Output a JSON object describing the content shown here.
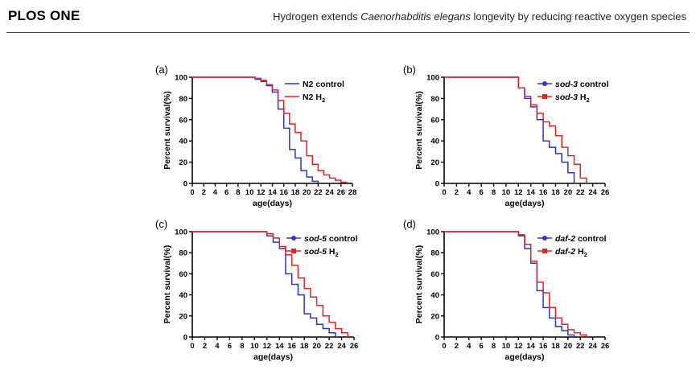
{
  "header": {
    "journal": "PLOS ONE",
    "title_pre": "Hydrogen extends ",
    "title_italic": "Caenorhabditis elegans",
    "title_post": " longevity by reducing reactive oxygen species"
  },
  "chart_data": [
    {
      "type": "line",
      "panel": "(a)",
      "xlabel": "age(days)",
      "ylabel": "Percent survival(%)",
      "xlim": [
        0,
        28
      ],
      "ylim": [
        0,
        100
      ],
      "xticks": [
        0,
        2,
        4,
        6,
        8,
        10,
        12,
        14,
        16,
        18,
        20,
        22,
        24,
        26,
        28
      ],
      "yticks": [
        0,
        20,
        40,
        60,
        80,
        100
      ],
      "legend_position": "top-right",
      "series": [
        {
          "name": "N2 control",
          "name_italic": "",
          "name_plain": "N2 control",
          "name_sub": "",
          "color": "#2b35d6",
          "points": [
            [
              0,
              100
            ],
            [
              10,
              100
            ],
            [
              11,
              98
            ],
            [
              12,
              96
            ],
            [
              13,
              92
            ],
            [
              14,
              86
            ],
            [
              15,
              70
            ],
            [
              16,
              52
            ],
            [
              17,
              32
            ],
            [
              18,
              24
            ],
            [
              19,
              12
            ],
            [
              20,
              6
            ],
            [
              21,
              2
            ],
            [
              22,
              0
            ]
          ]
        },
        {
          "name": "N2 H2",
          "name_italic": "",
          "name_plain": "N2 H",
          "name_sub": "2",
          "color": "#e02424",
          "points": [
            [
              0,
              100
            ],
            [
              10,
              100
            ],
            [
              11,
              99
            ],
            [
              12,
              97
            ],
            [
              13,
              93
            ],
            [
              14,
              88
            ],
            [
              15,
              78
            ],
            [
              16,
              66
            ],
            [
              17,
              56
            ],
            [
              18,
              48
            ],
            [
              19,
              40
            ],
            [
              20,
              26
            ],
            [
              21,
              18
            ],
            [
              22,
              12
            ],
            [
              23,
              8
            ],
            [
              24,
              5
            ],
            [
              25,
              3
            ],
            [
              26,
              1
            ],
            [
              27,
              0
            ]
          ]
        }
      ]
    },
    {
      "type": "line",
      "panel": "(b)",
      "xlabel": "age(days)",
      "ylabel": "Percent survival(%)",
      "xlim": [
        0,
        26
      ],
      "ylim": [
        0,
        100
      ],
      "xticks": [
        0,
        2,
        4,
        6,
        8,
        10,
        12,
        14,
        16,
        18,
        20,
        22,
        24,
        26
      ],
      "yticks": [
        0,
        20,
        40,
        60,
        80,
        100
      ],
      "legend_position": "top-right",
      "series": [
        {
          "name": "sod-3 control",
          "name_italic": "sod-3",
          "name_plain": " control",
          "name_sub": "",
          "color": "#2b35d6",
          "points": [
            [
              0,
              100
            ],
            [
              11,
              100
            ],
            [
              12,
              90
            ],
            [
              13,
              80
            ],
            [
              14,
              72
            ],
            [
              15,
              60
            ],
            [
              16,
              40
            ],
            [
              17,
              34
            ],
            [
              18,
              28
            ],
            [
              19,
              20
            ],
            [
              20,
              10
            ],
            [
              21,
              0
            ]
          ]
        },
        {
          "name": "sod-3 H2",
          "name_italic": "sod-3",
          "name_plain": " H",
          "name_sub": "2",
          "color": "#e02424",
          "points": [
            [
              0,
              100
            ],
            [
              11,
              100
            ],
            [
              12,
              90
            ],
            [
              13,
              82
            ],
            [
              14,
              74
            ],
            [
              15,
              66
            ],
            [
              16,
              58
            ],
            [
              17,
              54
            ],
            [
              18,
              45
            ],
            [
              19,
              34
            ],
            [
              20,
              26
            ],
            [
              21,
              18
            ],
            [
              22,
              5
            ],
            [
              23,
              0
            ]
          ]
        }
      ]
    },
    {
      "type": "line",
      "panel": "(c)",
      "xlabel": "age(days)",
      "ylabel": "Percent survival(%)",
      "xlim": [
        0,
        26
      ],
      "ylim": [
        0,
        100
      ],
      "xticks": [
        0,
        2,
        4,
        6,
        8,
        10,
        12,
        14,
        16,
        18,
        20,
        22,
        24,
        26
      ],
      "yticks": [
        0,
        20,
        40,
        60,
        80,
        100
      ],
      "legend_position": "top-right",
      "series": [
        {
          "name": "sod-5 control",
          "name_italic": "sod-5",
          "name_plain": " control",
          "name_sub": "",
          "color": "#2b35d6",
          "points": [
            [
              0,
              100
            ],
            [
              11,
              100
            ],
            [
              12,
              96
            ],
            [
              13,
              90
            ],
            [
              14,
              84
            ],
            [
              15,
              60
            ],
            [
              16,
              50
            ],
            [
              17,
              40
            ],
            [
              18,
              22
            ],
            [
              19,
              18
            ],
            [
              20,
              12
            ],
            [
              21,
              8
            ],
            [
              22,
              4
            ],
            [
              23,
              0
            ]
          ]
        },
        {
          "name": "sod-5 H2",
          "name_italic": "sod-5",
          "name_plain": " H",
          "name_sub": "2",
          "color": "#e02424",
          "points": [
            [
              0,
              100
            ],
            [
              11,
              100
            ],
            [
              12,
              98
            ],
            [
              13,
              94
            ],
            [
              14,
              86
            ],
            [
              15,
              78
            ],
            [
              16,
              68
            ],
            [
              17,
              56
            ],
            [
              18,
              46
            ],
            [
              19,
              38
            ],
            [
              20,
              30
            ],
            [
              21,
              20
            ],
            [
              22,
              14
            ],
            [
              23,
              8
            ],
            [
              24,
              4
            ],
            [
              25,
              0
            ]
          ]
        }
      ]
    },
    {
      "type": "line",
      "panel": "(d)",
      "xlabel": "age(days)",
      "ylabel": "Percent survival(%)",
      "xlim": [
        0,
        26
      ],
      "ylim": [
        0,
        100
      ],
      "xticks": [
        0,
        2,
        4,
        6,
        8,
        10,
        12,
        14,
        16,
        18,
        20,
        22,
        24,
        26
      ],
      "yticks": [
        0,
        20,
        40,
        60,
        80,
        100
      ],
      "legend_position": "top-right",
      "series": [
        {
          "name": "daf-2 control",
          "name_italic": "daf-2",
          "name_plain": " control",
          "name_sub": "",
          "color": "#2b35d6",
          "points": [
            [
              0,
              100
            ],
            [
              11,
              100
            ],
            [
              12,
              96
            ],
            [
              13,
              84
            ],
            [
              14,
              70
            ],
            [
              15,
              44
            ],
            [
              16,
              28
            ],
            [
              17,
              18
            ],
            [
              18,
              10
            ],
            [
              19,
              6
            ],
            [
              20,
              2
            ],
            [
              21,
              0
            ]
          ]
        },
        {
          "name": "daf-2 H2",
          "name_italic": "daf-2",
          "name_plain": " H",
          "name_sub": "2",
          "color": "#e02424",
          "points": [
            [
              0,
              100
            ],
            [
              11,
              100
            ],
            [
              12,
              97
            ],
            [
              13,
              88
            ],
            [
              14,
              72
            ],
            [
              15,
              52
            ],
            [
              16,
              42
            ],
            [
              17,
              28
            ],
            [
              18,
              18
            ],
            [
              19,
              12
            ],
            [
              20,
              7
            ],
            [
              21,
              4
            ],
            [
              22,
              2
            ],
            [
              23,
              0
            ]
          ]
        }
      ]
    }
  ]
}
